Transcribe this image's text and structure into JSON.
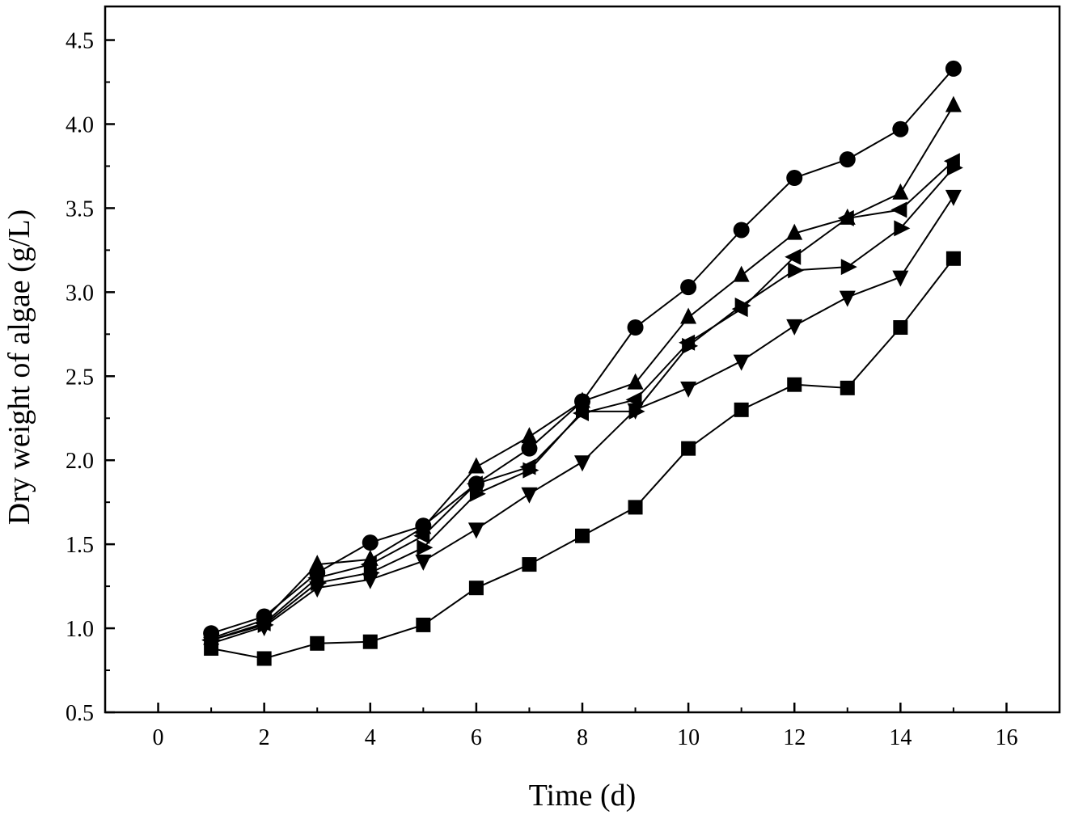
{
  "chart_data": {
    "type": "line",
    "title": "",
    "xlabel": "Time (d)",
    "ylabel": "Dry weight of algae (g/L)",
    "xlim": [
      -1,
      17
    ],
    "ylim": [
      0.5,
      4.7
    ],
    "x_ticks": [
      0,
      2,
      4,
      6,
      8,
      10,
      12,
      14,
      16
    ],
    "x_tick_labels": [
      "0",
      "2",
      "4",
      "6",
      "8",
      "10",
      "12",
      "14",
      "16"
    ],
    "y_ticks": [
      0.5,
      1.0,
      1.5,
      2.0,
      2.5,
      3.0,
      3.5,
      4.0,
      4.5
    ],
    "y_tick_labels": [
      "0.5",
      "1.0",
      "1.5",
      "2.0",
      "2.5",
      "3.0",
      "3.5",
      "4.0",
      "4.5"
    ],
    "grid": false,
    "legend": "none",
    "x": [
      1,
      2,
      3,
      4,
      5,
      6,
      7,
      8,
      9,
      10,
      11,
      12,
      13,
      14,
      15
    ],
    "series": [
      {
        "marker": "square",
        "color": "#000000",
        "values": [
          0.88,
          0.82,
          0.91,
          0.92,
          1.02,
          1.24,
          1.38,
          1.55,
          1.72,
          2.07,
          2.3,
          2.45,
          2.43,
          2.79,
          3.2
        ]
      },
      {
        "marker": "circle",
        "color": "#000000",
        "values": [
          0.97,
          1.07,
          1.33,
          1.51,
          1.61,
          1.86,
          2.07,
          2.35,
          2.79,
          3.03,
          3.37,
          3.68,
          3.79,
          3.97,
          4.33
        ]
      },
      {
        "marker": "triangle-up",
        "color": "#000000",
        "values": [
          0.94,
          1.05,
          1.38,
          1.41,
          1.6,
          1.96,
          2.14,
          2.35,
          2.46,
          2.85,
          3.1,
          3.35,
          3.44,
          3.59,
          4.11
        ]
      },
      {
        "marker": "triangle-down",
        "color": "#000000",
        "values": [
          0.91,
          1.01,
          1.24,
          1.29,
          1.4,
          1.59,
          1.8,
          1.99,
          2.3,
          2.43,
          2.59,
          2.8,
          2.97,
          3.09,
          3.57
        ]
      },
      {
        "marker": "triangle-left",
        "color": "#000000",
        "values": [
          0.93,
          1.03,
          1.3,
          1.38,
          1.55,
          1.86,
          1.96,
          2.28,
          2.36,
          2.7,
          2.9,
          3.21,
          3.44,
          3.49,
          3.78
        ]
      },
      {
        "marker": "triangle-right",
        "color": "#000000",
        "values": [
          0.93,
          1.02,
          1.27,
          1.33,
          1.48,
          1.8,
          1.94,
          2.29,
          2.29,
          2.68,
          2.92,
          3.13,
          3.15,
          3.38,
          3.74
        ]
      }
    ]
  }
}
